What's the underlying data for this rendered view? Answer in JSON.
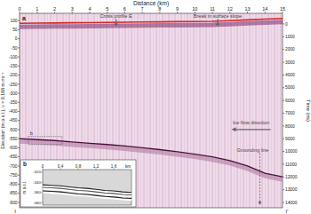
{
  "chart_data": [
    {
      "type": "line",
      "title": "a",
      "x_label": "Distance (km)",
      "y_label": "Elevation (m a.s.l.), v = 0.168 m ns⁻¹",
      "y2_label": "Time (ns)",
      "xlim": [
        0,
        15
      ],
      "xticks": [
        0,
        1,
        2,
        3,
        4,
        5,
        6,
        7,
        8,
        9,
        10,
        11,
        12,
        13,
        14,
        15
      ],
      "ylim": [
        -930,
        140
      ],
      "yticks": [
        100,
        50,
        0,
        -50,
        -100,
        -150,
        -200,
        -250,
        -300,
        -350,
        -400,
        -450,
        -500,
        -550,
        -600,
        -650,
        -700,
        -750,
        -800,
        -850,
        -900
      ],
      "y2lim": [
        -830,
        14415
      ],
      "y2ticks": [
        0,
        1000,
        2000,
        3000,
        4000,
        5000,
        6000,
        7000,
        8000,
        9000,
        10000,
        11000,
        12000,
        13000,
        14000
      ],
      "x": [
        0,
        1,
        2,
        3,
        4,
        5,
        6,
        7,
        8,
        9,
        10,
        11,
        12,
        13,
        14,
        15
      ],
      "series": [
        {
          "color": "#d62728",
          "values": [
            85,
            86,
            87,
            88,
            89,
            90,
            91,
            92,
            93,
            94,
            95,
            96,
            100,
            104,
            108,
            112
          ]
        },
        {
          "color": "#4a0d3c",
          "values": [
            -550,
            -555,
            -560,
            -568,
            -575,
            -582,
            -590,
            -600,
            -610,
            -622,
            -635,
            -650,
            -670,
            -700,
            -740,
            -760
          ]
        }
      ],
      "annotations": [
        {
          "text": "Cross profile E",
          "x": 5.5,
          "y": 118,
          "arrow": "down"
        },
        {
          "text": "Break in surface slope",
          "x": 11.3,
          "y": 118,
          "arrow": "down"
        },
        {
          "text": "Ice flow direction",
          "x": 13.2,
          "y": -470,
          "arrow": "left"
        },
        {
          "text": "Grounding line",
          "x": 13.3,
          "y": -620,
          "arrow": "dashed"
        },
        {
          "text": "b",
          "x": 0.5,
          "y": -572,
          "arrow": "box"
        }
      ],
      "endpoints": [
        "I",
        "I'"
      ]
    },
    {
      "type": "line",
      "title": "b",
      "x_label": "km",
      "y_label": "m a.s.l.",
      "xlim": [
        0,
        2.0
      ],
      "xticks": [
        0,
        0.4,
        0.8,
        1.2,
        1.6
      ],
      "ylim": [
        -515,
        -585
      ],
      "yticks": [
        -520,
        -540,
        -560,
        -580
      ],
      "x": [
        0,
        0.2,
        0.4,
        0.6,
        0.8,
        1.0,
        1.2,
        1.4,
        1.6,
        1.8,
        2.0
      ],
      "series": [
        {
          "color": "#222222",
          "values": [
            -545,
            -546,
            -547,
            -549,
            -551,
            -552,
            -554,
            -556,
            -557,
            -559,
            -560
          ]
        },
        {
          "color": "#555555",
          "values": [
            -550,
            -551,
            -552,
            -554,
            -556,
            -557,
            -559,
            -561,
            -562,
            -564,
            -565
          ]
        },
        {
          "color": "#222222",
          "values": [
            -557,
            -558,
            -559,
            -561,
            -563,
            -564,
            -566,
            -568,
            -569,
            -571,
            -572
          ]
        }
      ]
    }
  ]
}
